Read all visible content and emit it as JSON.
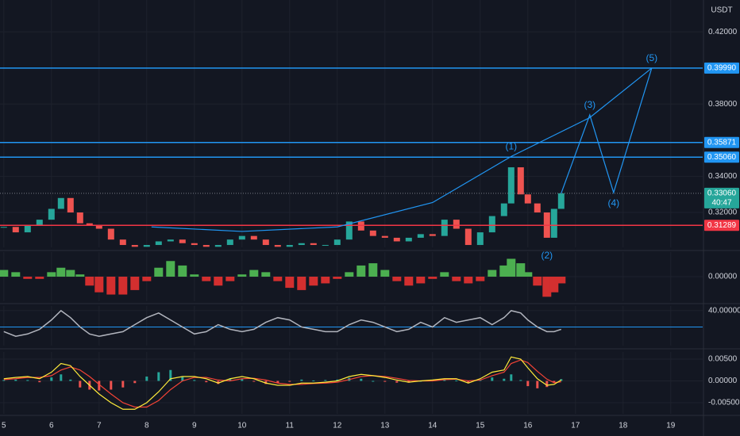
{
  "chart_data": [
    {
      "type": "candlestick",
      "unit": "USDT",
      "x": [
        5,
        5.25,
        5.5,
        5.75,
        6,
        6.2,
        6.4,
        6.6,
        6.8,
        7,
        7.25,
        7.5,
        7.75,
        8,
        8.25,
        8.5,
        8.75,
        9,
        9.25,
        9.5,
        9.75,
        10,
        10.25,
        10.5,
        10.75,
        11,
        11.25,
        11.5,
        11.75,
        12,
        12.25,
        12.5,
        12.75,
        13,
        13.25,
        13.5,
        13.75,
        14,
        14.25,
        14.5,
        14.75,
        15,
        15.25,
        15.5,
        15.65,
        15.85,
        16,
        16.2,
        16.4,
        16.55,
        16.7
      ],
      "values": [
        0.312,
        0.309,
        0.313,
        0.316,
        0.322,
        0.328,
        0.32,
        0.314,
        0.313,
        0.311,
        0.305,
        0.302,
        0.301,
        0.302,
        0.304,
        0.305,
        0.303,
        0.302,
        0.301,
        0.302,
        0.305,
        0.307,
        0.305,
        0.302,
        0.301,
        0.302,
        0.303,
        0.302,
        0.302,
        0.305,
        0.315,
        0.31,
        0.307,
        0.306,
        0.304,
        0.306,
        0.308,
        0.307,
        0.316,
        0.311,
        0.302,
        0.309,
        0.318,
        0.325,
        0.345,
        0.33,
        0.325,
        0.32,
        0.306,
        0.322,
        0.3306
      ],
      "up_color": "#26a69a",
      "down_color": "#ef5350",
      "xlim": [
        4.92,
        19.67
      ],
      "xticks": [
        5,
        6,
        7,
        8,
        9,
        10,
        11,
        12,
        13,
        14,
        15,
        16,
        17,
        18,
        19
      ],
      "ylim": [
        0.3007,
        0.4376
      ],
      "yticks": [
        {
          "value": 0.32,
          "label": "0.32000"
        },
        {
          "value": 0.34,
          "label": "0.34000"
        },
        {
          "value": 0.38,
          "label": "0.38000"
        },
        {
          "value": 0.42,
          "label": "0.42000"
        }
      ],
      "grid": true,
      "levels": [
        {
          "value": 0.3999,
          "label": "0.39990",
          "color": "#2196f3"
        },
        {
          "value": 0.35871,
          "label": "0.35871",
          "color": "#2196f3"
        },
        {
          "value": 0.3506,
          "label": "0.35060",
          "color": "#2196f3"
        },
        {
          "value": 0.31289,
          "label": "0.31289",
          "color": "#f23645"
        }
      ],
      "current": {
        "value": 0.3306,
        "label": "0.33060",
        "countdown": "40:47",
        "color": "#26a69a"
      },
      "curve": {
        "x": [
          8.1,
          10,
          12,
          14,
          15.65,
          17.3,
          18.6
        ],
        "y": [
          0.312,
          0.3095,
          0.312,
          0.3255,
          0.351,
          0.3725,
          0.3999
        ],
        "color": "#2196f3"
      },
      "waves": [
        {
          "label": "(1)",
          "x": 15.65,
          "y": 0.351
        },
        {
          "label": "(2)",
          "x": 16.4,
          "y": 0.302
        },
        {
          "label": "(3)",
          "x": 17.3,
          "y": 0.374
        },
        {
          "label": "(4)",
          "x": 17.8,
          "y": 0.331
        },
        {
          "label": "(5)",
          "x": 18.6,
          "y": 0.3999
        }
      ],
      "wave_color": "#2196f3"
    },
    {
      "type": "bar",
      "values": [
        0.003,
        0.002,
        -0.001,
        -0.001,
        0.002,
        0.004,
        0.003,
        0.001,
        -0.004,
        -0.007,
        -0.008,
        -0.008,
        -0.006,
        -0.002,
        0.004,
        0.007,
        0.005,
        0.001,
        -0.002,
        -0.004,
        -0.002,
        0.001,
        0.003,
        0.002,
        -0.002,
        -0.005,
        -0.006,
        -0.004,
        -0.003,
        -0.001,
        0.002,
        0.005,
        0.006,
        0.003,
        -0.002,
        -0.004,
        -0.003,
        -0.001,
        0.002,
        -0.002,
        -0.003,
        -0.002,
        0.003,
        0.005,
        0.008,
        0.006,
        0.002,
        -0.004,
        -0.009,
        -0.007,
        -0.003
      ],
      "up_color": "#4caf50",
      "down_color": "#d32f2f",
      "ylim": [
        -0.011,
        0.011
      ],
      "yticks": [
        {
          "value": 0,
          "label": "0.00000"
        }
      ]
    },
    {
      "type": "line",
      "values": [
        31,
        29,
        30,
        32,
        36,
        40,
        37,
        33,
        30,
        29,
        30,
        31,
        34,
        37,
        39,
        36,
        33,
        30,
        31,
        34,
        32,
        31,
        32,
        35,
        37,
        36,
        33,
        32,
        31,
        31,
        34,
        36,
        35,
        33,
        31,
        32,
        35,
        33,
        37,
        35,
        36,
        37,
        34,
        37,
        40,
        39,
        36,
        33,
        31,
        31,
        32
      ],
      "color": "#b2b5be",
      "level": 33,
      "level_color": "#2196f3",
      "ylim": [
        25,
        42
      ],
      "yticks": [
        {
          "value": 40,
          "label": "40.00000"
        }
      ]
    },
    {
      "type": "macd",
      "series": [
        {
          "kind": "bar",
          "up_color": "#26a69a",
          "down_color": "#ef5350",
          "values": [
            0.0002,
            0.0003,
            0.0002,
            -0.0003,
            0.0008,
            0.0015,
            0.0003,
            -0.0015,
            -0.002,
            -0.0022,
            -0.002,
            -0.0015,
            -0.0005,
            0.001,
            0.002,
            0.0025,
            0.001,
            0.0002,
            -0.0003,
            -0.0007,
            0.0005,
            0.0005,
            -0.0001,
            -0.0007,
            -0.0005,
            -0.0002,
            0.0003,
            0.0001,
            0.0002,
            0.0003,
            0.0007,
            0.0005,
            0,
            -0.0002,
            -0.0004,
            -0.0004,
            0,
            0.0002,
            0.0002,
            0.0001,
            -0.0005,
            0.0003,
            0.0008,
            0.0005,
            0.0015,
            0.0002,
            -0.0012,
            -0.0017,
            -0.0014,
            -0.0004,
            0.0004
          ]
        },
        {
          "kind": "line",
          "color": "#f44336",
          "values": [
            0.0003,
            0.0005,
            0.0008,
            0.0008,
            0.0012,
            0.0025,
            0.0032,
            0.0025,
            0.001,
            -0.0008,
            -0.003,
            -0.005,
            -0.006,
            -0.006,
            -0.0045,
            -0.002,
            0,
            0.0008,
            0.0008,
            0.0002,
            0,
            0.0005,
            0.0006,
            0.0002,
            -0.0005,
            -0.0008,
            -0.0008,
            -0.0006,
            -0.0005,
            -0.0003,
            0.0003,
            0.001,
            0.0012,
            0.001,
            0.0006,
            0.0001,
            0,
            0,
            0.0003,
            0.0004,
            0,
            0.0002,
            0.0012,
            0.002,
            0.004,
            0.0048,
            0.0042,
            0.0022,
            0.0004,
            -0.0004,
            -0.0002
          ]
        },
        {
          "kind": "line",
          "color": "#ffeb3b",
          "values": [
            0.0005,
            0.0008,
            0.001,
            0.0005,
            0.002,
            0.004,
            0.0035,
            0.001,
            -0.001,
            -0.003,
            -0.005,
            -0.0065,
            -0.0065,
            -0.005,
            -0.0025,
            0.0005,
            0.001,
            0.001,
            0.0005,
            -0.0005,
            0.0005,
            0.001,
            0.0005,
            -0.0005,
            -0.001,
            -0.001,
            -0.0005,
            -0.0005,
            -0.0003,
            0,
            0.001,
            0.0015,
            0.0012,
            0.0008,
            0.0002,
            -0.0003,
            0,
            0.0002,
            0.0005,
            0.0005,
            -0.0005,
            0.0005,
            0.002,
            0.0025,
            0.0055,
            0.005,
            0.003,
            0.0005,
            -0.001,
            -0.0008,
            0.0002
          ]
        }
      ],
      "ylim": [
        -0.00755,
        0.00664
      ],
      "yticks": [
        {
          "value": 0.005,
          "label": "0.00500"
        },
        {
          "value": 0,
          "label": "0.00000"
        },
        {
          "value": -0.005,
          "label": "-0.00500"
        }
      ]
    }
  ]
}
